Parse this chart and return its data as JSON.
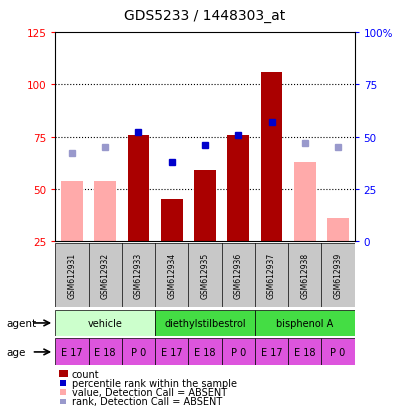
{
  "title": "GDS5233 / 1448303_at",
  "samples": [
    "GSM612931",
    "GSM612932",
    "GSM612933",
    "GSM612934",
    "GSM612935",
    "GSM612936",
    "GSM612937",
    "GSM612938",
    "GSM612939"
  ],
  "agents": [
    {
      "label": "vehicle",
      "start": 0,
      "end": 3,
      "color": "#ccffcc"
    },
    {
      "label": "diethylstilbestrol",
      "start": 3,
      "end": 6,
      "color": "#44dd44"
    },
    {
      "label": "bisphenol A",
      "start": 6,
      "end": 9,
      "color": "#44dd44"
    }
  ],
  "ages": [
    "E 17",
    "E 18",
    "P 0",
    "E 17",
    "E 18",
    "P 0",
    "E 17",
    "E 18",
    "P 0"
  ],
  "age_color": "#dd55dd",
  "count_values": [
    null,
    null,
    76,
    45,
    59,
    76,
    106,
    null,
    null
  ],
  "count_color": "#aa0000",
  "percentile_values": [
    null,
    null,
    77,
    63,
    71,
    76,
    82,
    null,
    null
  ],
  "percentile_color": "#0000cc",
  "absent_value_values": [
    54,
    54,
    null,
    null,
    null,
    null,
    null,
    63,
    36
  ],
  "absent_value_color": "#ffaaaa",
  "absent_rank_values": [
    67,
    70,
    null,
    null,
    null,
    null,
    null,
    72,
    70
  ],
  "absent_rank_color": "#9999cc",
  "ylim_left": [
    25,
    125
  ],
  "yticks_left": [
    25,
    50,
    75,
    100,
    125
  ],
  "ylim_right": [
    0,
    100
  ],
  "ytick_labels_right": [
    "0",
    "25",
    "50",
    "75",
    "100%"
  ],
  "bar_bottom": 25,
  "background_color": "#ffffff"
}
